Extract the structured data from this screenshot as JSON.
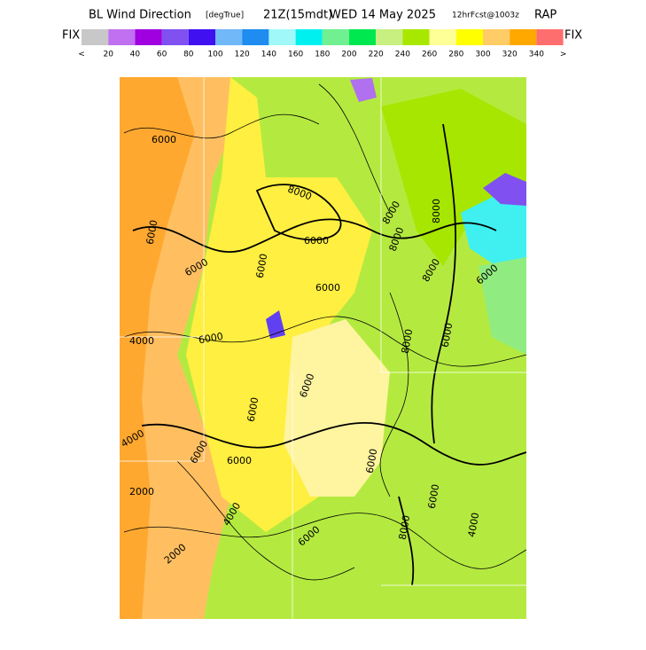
{
  "header": {
    "title": "BL Wind Direction",
    "units": "[degTrue]",
    "valid_time": "21Z(15mdt)",
    "date": "WED 14 May 2025",
    "forecast": "12hrFcst@1003z",
    "model": "RAP"
  },
  "legend": {
    "left_label": "FIX",
    "right_label": "FIX",
    "colors": [
      "#c8c8c8",
      "#c070f0",
      "#a000e0",
      "#8050f0",
      "#4010f0",
      "#70b8f8",
      "#1e8cf0",
      "#a0f8f8",
      "#00f0f0",
      "#70f090",
      "#00e850",
      "#c8f080",
      "#a8e800",
      "#ffff98",
      "#ffff00",
      "#ffcc66",
      "#ffa800",
      "#ff6e6e"
    ],
    "ticks": [
      "<",
      20,
      40,
      60,
      80,
      100,
      120,
      140,
      160,
      180,
      200,
      220,
      240,
      260,
      280,
      300,
      320,
      340,
      ">"
    ]
  },
  "contour_labels": [
    "6000",
    "6000",
    "8000",
    "8000",
    "6000",
    "8000",
    "6000",
    "6000",
    "4000",
    "6000",
    "6000",
    "8000",
    "8000",
    "6000",
    "8000",
    "6000",
    "6000",
    "6000",
    "2000",
    "4000",
    "2000",
    "6000",
    "6000",
    "6000",
    "4000",
    "6000",
    "8000",
    "6000",
    "4000"
  ]
}
